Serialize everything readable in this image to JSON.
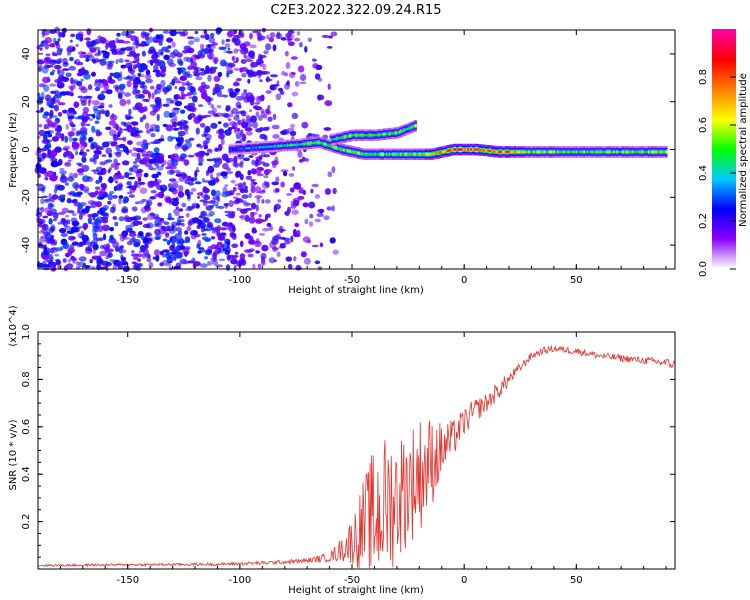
{
  "title": "C2E3.2022.322.09.24.R15",
  "chart_data": [
    {
      "type": "heatmap",
      "xlabel": "Height of straight line (km)",
      "ylabel": "Frequency (Hz)",
      "xlim": [
        -190,
        94
      ],
      "ylim": [
        -50,
        50
      ],
      "x_ticks": [
        -150,
        -100,
        -50,
        0,
        50
      ],
      "y_ticks": [
        -40,
        -20,
        0,
        20,
        40
      ],
      "colorbar": {
        "label": "Normalized spectral amplitude",
        "range": [
          0,
          1
        ],
        "ticks": [
          0.0,
          0.2,
          0.4,
          0.6,
          0.8
        ],
        "colors": [
          "#ffffff",
          "#8a00ff",
          "#0000ff",
          "#00c8ff",
          "#00ff00",
          "#ffff00",
          "#ff8000",
          "#ff0000",
          "#ff00a0"
        ]
      },
      "noise_region_x": [
        -190,
        -65
      ],
      "ridge": {
        "x": [
          -105,
          -90,
          -75,
          -65,
          -55,
          -45,
          -35,
          -25,
          -15,
          -5,
          5,
          15,
          30,
          50,
          70,
          90
        ],
        "freq": [
          0,
          1,
          2,
          3,
          0,
          -2,
          -2,
          -2,
          -2,
          0,
          0,
          -1,
          -1,
          -1,
          -1,
          -1
        ],
        "amplitude": [
          0.3,
          0.4,
          0.5,
          0.55,
          0.6,
          0.55,
          0.55,
          0.6,
          0.7,
          0.85,
          0.9,
          0.85,
          0.6,
          0.55,
          0.55,
          0.6
        ]
      },
      "upper_branch": {
        "x": [
          -60,
          -50,
          -40,
          -30,
          -22
        ],
        "freq": [
          4,
          6,
          6,
          7,
          10
        ],
        "amplitude": [
          0.5,
          0.55,
          0.5,
          0.55,
          0.6
        ]
      }
    },
    {
      "type": "line",
      "xlabel": "Height of straight line (km)",
      "ylabel": "SNR (10 * v/v)",
      "y_multiplier": "(x10^4)",
      "xlim": [
        -190,
        94
      ],
      "ylim": [
        0,
        1.0
      ],
      "x_ticks": [
        -150,
        -100,
        -50,
        0,
        50
      ],
      "y_ticks": [
        0.2,
        0.4,
        0.6,
        0.8,
        1.0
      ],
      "color": "#e8322d",
      "series": [
        {
          "x": [
            -190,
            -150,
            -110,
            -90,
            -70,
            -60,
            -55,
            -50,
            -45,
            -40,
            -35,
            -30,
            -25,
            -20,
            -15,
            -10,
            -5,
            0,
            5,
            10,
            15,
            20,
            25,
            30,
            35,
            40,
            50,
            60,
            70,
            80,
            90,
            94
          ],
          "values": [
            0.015,
            0.018,
            0.02,
            0.025,
            0.035,
            0.05,
            0.08,
            0.12,
            0.18,
            0.22,
            0.27,
            0.3,
            0.35,
            0.4,
            0.45,
            0.5,
            0.55,
            0.62,
            0.67,
            0.7,
            0.75,
            0.8,
            0.85,
            0.9,
            0.92,
            0.93,
            0.92,
            0.9,
            0.89,
            0.88,
            0.87,
            0.86
          ],
          "noise": [
            0.005,
            0.005,
            0.006,
            0.008,
            0.01,
            0.02,
            0.05,
            0.1,
            0.2,
            0.3,
            0.3,
            0.28,
            0.25,
            0.25,
            0.2,
            0.12,
            0.08,
            0.06,
            0.05,
            0.04,
            0.04,
            0.03,
            0.02,
            0.015,
            0.015,
            0.015,
            0.015,
            0.015,
            0.015,
            0.015,
            0.02,
            0.02
          ]
        }
      ]
    }
  ]
}
